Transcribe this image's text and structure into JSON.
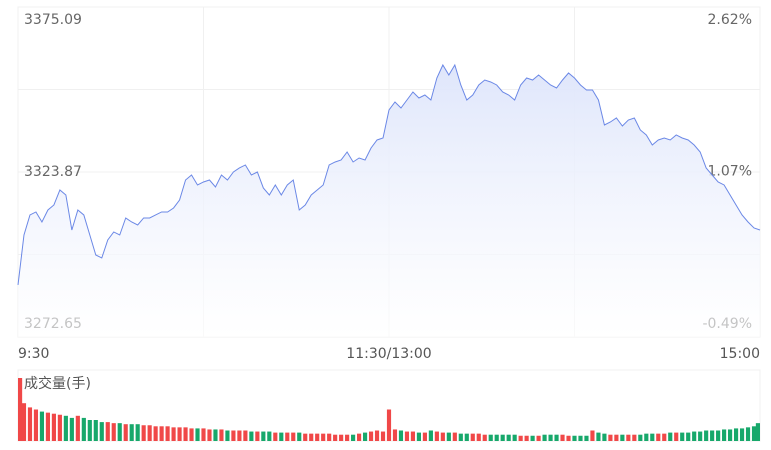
{
  "chart_data": [
    {
      "type": "line",
      "categories": [
        "9:30",
        null,
        null,
        null,
        null,
        null,
        null,
        null,
        null,
        null,
        null,
        null,
        null,
        null,
        null,
        null,
        null,
        null,
        null,
        null,
        null,
        null,
        null,
        null,
        null,
        null,
        null,
        null,
        null,
        null,
        null,
        null,
        null,
        null,
        null,
        null,
        null,
        null,
        null,
        null,
        null,
        null,
        null,
        null,
        null,
        null,
        null,
        null,
        null,
        null,
        null,
        null,
        null,
        null,
        null,
        null,
        null,
        null,
        null,
        null,
        null,
        null,
        "11:30/13:00",
        null,
        null,
        null,
        null,
        null,
        null,
        null,
        null,
        null,
        null,
        null,
        null,
        null,
        null,
        null,
        null,
        null,
        null,
        null,
        null,
        null,
        null,
        null,
        null,
        null,
        null,
        null,
        null,
        null,
        null,
        null,
        null,
        null,
        null,
        null,
        null,
        null,
        null,
        null,
        null,
        null,
        null,
        null,
        null,
        null,
        null,
        null,
        null,
        null,
        null,
        null,
        null,
        null,
        null,
        null,
        null,
        null,
        null,
        null,
        null,
        null,
        "15:00"
      ],
      "series": [
        {
          "color": "#6b88e6",
          "values": [
            3288.8,
            3304.32,
            3310.53,
            3311.46,
            3308.35,
            3312.08,
            3313.63,
            3318.29,
            3316.73,
            3305.87,
            3312.08,
            3310.53,
            3304.32,
            3298.11,
            3297.18,
            3302.77,
            3305.25,
            3304.32,
            3309.6,
            3308.35,
            3307.42,
            3309.6,
            3309.6,
            3310.53,
            3311.46,
            3311.46,
            3312.7,
            3315.18,
            3321.39,
            3322.94,
            3319.84,
            3320.77,
            3321.39,
            3319.22,
            3322.94,
            3321.39,
            3323.87,
            3325.12,
            3326.05,
            3322.94,
            3323.87,
            3318.91,
            3316.73,
            3319.84,
            3316.73,
            3319.84,
            3321.39,
            3312.08,
            3313.63,
            3316.73,
            3318.29,
            3319.84,
            3326.05,
            3326.98,
            3327.6,
            3330.08,
            3326.98,
            3328.22,
            3327.6,
            3331.32,
            3333.81,
            3334.43,
            3343.12,
            3345.6,
            3343.74,
            3346.22,
            3348.71,
            3346.84,
            3347.77,
            3346.22,
            3353.05,
            3357.09,
            3353.98,
            3357.09,
            3350.88,
            3346.22,
            3347.77,
            3350.88,
            3352.43,
            3351.81,
            3350.88,
            3348.71,
            3347.77,
            3346.22,
            3350.88,
            3353.05,
            3352.43,
            3353.98,
            3352.43,
            3350.88,
            3349.95,
            3352.43,
            3354.6,
            3353.05,
            3350.88,
            3349.33,
            3349.33,
            3346.22,
            3338.46,
            3339.39,
            3340.64,
            3338.15,
            3340.01,
            3340.64,
            3336.91,
            3335.36,
            3332.25,
            3333.81,
            3334.43,
            3333.81,
            3335.36,
            3334.43,
            3333.81,
            3332.25,
            3330.08,
            3325.12,
            3322.94,
            3320.77,
            3319.84,
            3316.73,
            3313.63,
            3310.53,
            3308.35,
            3306.49,
            3305.87
          ]
        }
      ],
      "ylim": [
        3272.65,
        3375.09
      ],
      "yticks": [
        3272.65,
        3323.87,
        3375.09
      ],
      "y2lim": [
        -0.49,
        2.62
      ],
      "y2ticks": [
        {
          "value": -0.49,
          "label": "-0.49%"
        },
        {
          "value": 1.07,
          "label": "1.07%"
        },
        {
          "value": 2.62,
          "label": "2.62%"
        }
      ],
      "grid": true,
      "fill": true
    },
    {
      "type": "bar",
      "title": "成交量(手)",
      "up_color": "#f04848",
      "down_color": "#17a86b",
      "ylim": [
        0,
        60
      ],
      "values": [
        60,
        36,
        32,
        30,
        28,
        27,
        26,
        25,
        24,
        22,
        24,
        22,
        20,
        20,
        18,
        18,
        17,
        17,
        16,
        16,
        16,
        15,
        15,
        14,
        14,
        14,
        13,
        13,
        13,
        12,
        12,
        12,
        11,
        11,
        11,
        10,
        10,
        10,
        10,
        9,
        9,
        9,
        9,
        8,
        8,
        8,
        8,
        8,
        7,
        7,
        7,
        7,
        7,
        6,
        6,
        6,
        6,
        7,
        8,
        9,
        10,
        9,
        30,
        11,
        10,
        9,
        9,
        8,
        8,
        10,
        9,
        8,
        8,
        8,
        7,
        7,
        7,
        7,
        6,
        6,
        6,
        6,
        6,
        6,
        5,
        5,
        5,
        5,
        6,
        6,
        6,
        6,
        5,
        5,
        5,
        5,
        10,
        8,
        7,
        6,
        6,
        6,
        6,
        6,
        6,
        7,
        7,
        7,
        7,
        8,
        8,
        8,
        8,
        9,
        9,
        10,
        10,
        10,
        11,
        11,
        12,
        12,
        13,
        14,
        17
      ]
    }
  ]
}
